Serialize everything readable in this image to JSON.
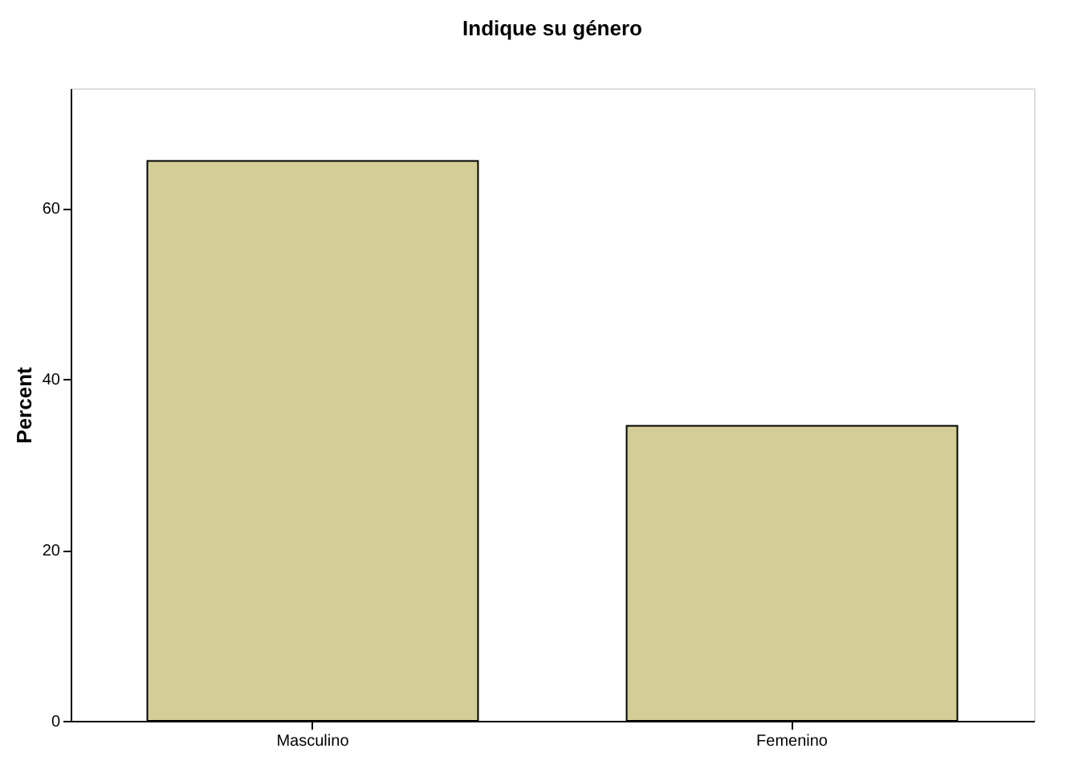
{
  "chart_data": {
    "type": "bar",
    "title": "Indique su género",
    "ylabel": "Percent",
    "categories": [
      "Masculino",
      "Femenino"
    ],
    "series": [
      {
        "color": "#d3ce97",
        "values": [
          65.5,
          34.5
        ]
      }
    ],
    "ylim": [
      0,
      74
    ],
    "yticks": [
      0,
      20,
      40,
      60
    ],
    "grid": false,
    "legend": false
  }
}
